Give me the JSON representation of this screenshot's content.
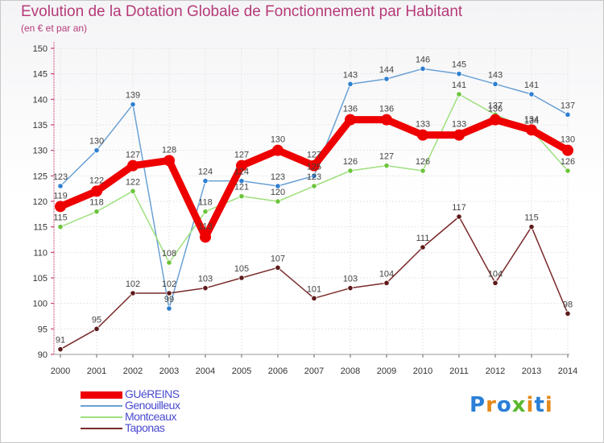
{
  "title": "Evolution de la Dotation Globale de Fonctionnement par Habitant",
  "subtitle": "(en € et par an)",
  "brand": {
    "letters": [
      "P",
      "r",
      "o",
      "x",
      "i",
      "t",
      "i"
    ],
    "colors": [
      "#2a7fd6",
      "#e58a1a",
      "#2a7fd6",
      "#5ab82c",
      "#e58a1a",
      "#2a7fd6",
      "#e58a1a"
    ]
  },
  "chart_data": {
    "type": "line",
    "title": "Evolution de la Dotation Globale de Fonctionnement par Habitant",
    "subtitle": "(en € et par an)",
    "xlabel": "",
    "ylabel": "",
    "categories": [
      "2000",
      "2001",
      "2002",
      "2003",
      "2004",
      "2005",
      "2006",
      "2007",
      "2008",
      "2009",
      "2010",
      "2011",
      "2012",
      "2013",
      "2014"
    ],
    "ylim": [
      90,
      150
    ],
    "yticks": [
      90,
      95,
      100,
      105,
      110,
      115,
      120,
      125,
      130,
      135,
      140,
      145,
      150
    ],
    "grid": true,
    "legend_position": "bottom-left",
    "series": [
      {
        "name": "Genouilleux",
        "color": "#6aa1d4",
        "marker": "#2f7fd0",
        "values": [
          123,
          130,
          139,
          99,
          124,
          124,
          123,
          125,
          143,
          144,
          146,
          145,
          143,
          141,
          137
        ],
        "labels": [
          "123",
          "130",
          "139",
          "99",
          "124",
          "124",
          "123",
          "125",
          "143",
          "144",
          "146",
          "145",
          "143",
          "141",
          "137"
        ]
      },
      {
        "name": "Montceaux",
        "color": "#9ee07d",
        "marker": "#6cc43a",
        "values": [
          115,
          118,
          122,
          108,
          118,
          121,
          120,
          123,
          126,
          127,
          126,
          141,
          137,
          134,
          126
        ],
        "labels": [
          "115",
          "118",
          "122",
          "108",
          "118",
          "121",
          "120",
          "123",
          "126",
          "127",
          "126",
          "141",
          "137",
          "134",
          "126"
        ]
      },
      {
        "name": "Taponas",
        "color": "#7a2a2a",
        "marker": "#5e1a1a",
        "values": [
          91,
          95,
          102,
          102,
          103,
          105,
          107,
          101,
          103,
          104,
          111,
          117,
          104,
          115,
          98
        ],
        "labels": [
          "91",
          "95",
          "102",
          "102",
          "103",
          "105",
          "107",
          "101",
          "103",
          "104",
          "111",
          "117",
          "104",
          "115",
          "98"
        ]
      },
      {
        "name": "GUéREINS",
        "color": "#ee0000",
        "marker": "#ee0000",
        "values": [
          119,
          122,
          127,
          128,
          113,
          127,
          130,
          127,
          136,
          136,
          133,
          133,
          136,
          134,
          130
        ],
        "labels": [
          "119",
          "122",
          "127",
          "128",
          "113",
          "127",
          "130",
          "127",
          "136",
          "136",
          "133",
          "133",
          "136",
          "134",
          "130"
        ]
      }
    ]
  },
  "legend": [
    {
      "label": "GUéREINS",
      "color": "#ee0000",
      "thickness": 9
    },
    {
      "label": "Genouilleux",
      "color": "#6aa1d4",
      "thickness": 2
    },
    {
      "label": "Montceaux",
      "color": "#9ee07d",
      "thickness": 2
    },
    {
      "label": "Taponas",
      "color": "#7a2a2a",
      "thickness": 2
    }
  ]
}
